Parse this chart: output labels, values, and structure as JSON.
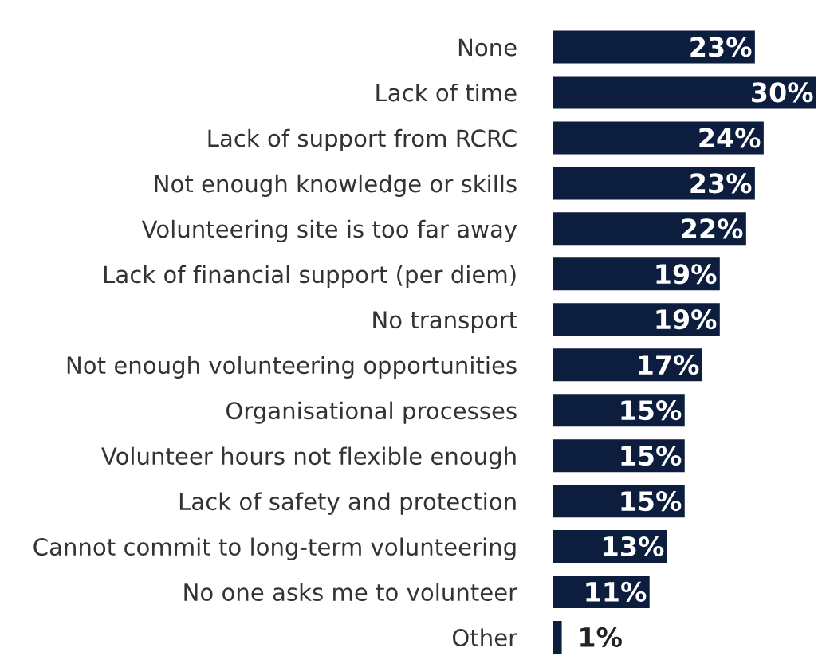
{
  "chart_data": {
    "type": "bar",
    "orientation": "horizontal",
    "color": "#0c1d3d",
    "categories": [
      "None",
      "Lack of time",
      "Lack of support from RCRC",
      "Not enough knowledge or skills",
      "Volunteering site is too far away",
      "Lack of financial support (per diem)",
      "No transport",
      "Not enough volunteering opportunities",
      "Organisational processes",
      "Volunteer hours not flexible enough",
      "Lack of safety and protection",
      "Cannot commit to long-term volunteering",
      "No one asks me to volunteer",
      "Other"
    ],
    "values": [
      23,
      30,
      24,
      23,
      22,
      19,
      19,
      17,
      15,
      15,
      15,
      13,
      11,
      1
    ],
    "value_labels": [
      "23%",
      "30%",
      "24%",
      "23%",
      "22%",
      "19%",
      "19%",
      "17%",
      "15%",
      "15%",
      "15%",
      "13%",
      "11%",
      "1%"
    ],
    "relative": false,
    "grid": false,
    "legend": false
  }
}
